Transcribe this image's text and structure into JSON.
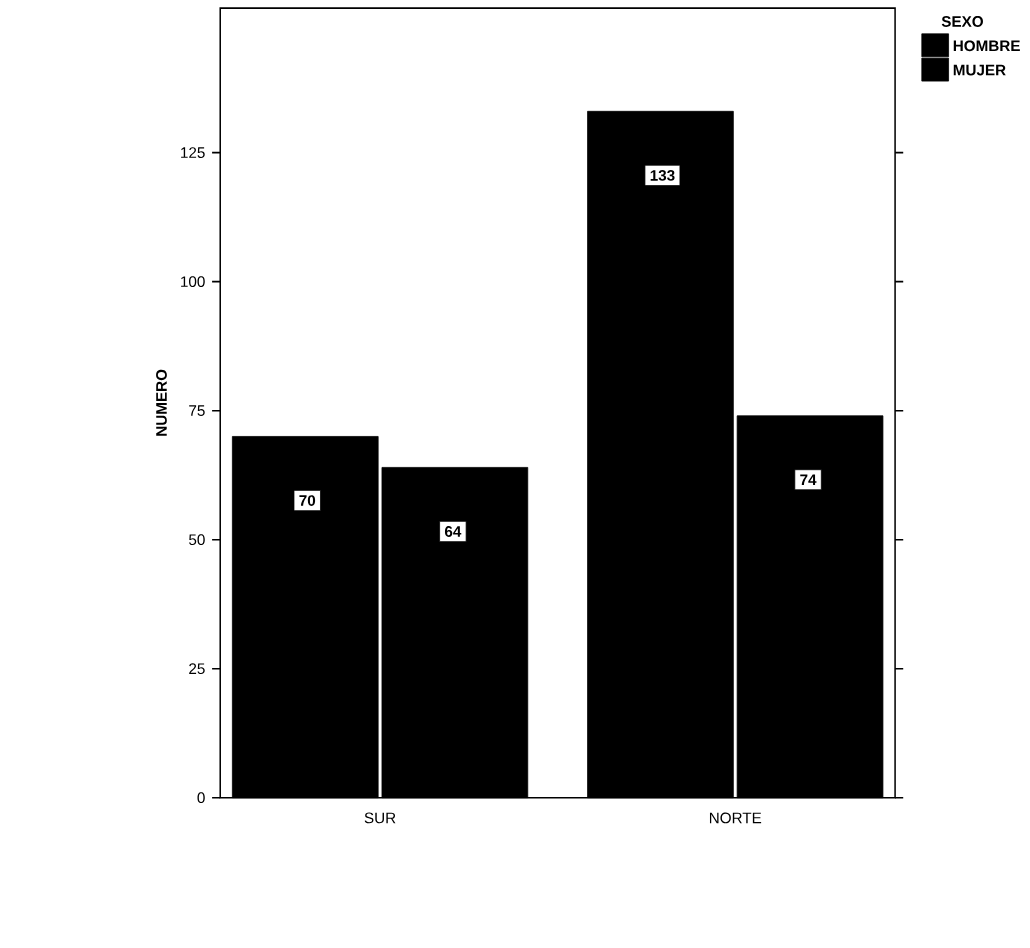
{
  "chart_data": {
    "type": "bar",
    "ylabel": "NUMERO",
    "legend_title": "SEXO",
    "categories": [
      "SUR",
      "NORTE"
    ],
    "series": [
      {
        "name": "HOMBRE",
        "color": "#000000",
        "values": [
          70,
          133
        ]
      },
      {
        "name": "MUJER",
        "color": "#000000",
        "values": [
          64,
          74
        ]
      }
    ],
    "ylim": [
      0,
      153
    ],
    "yticks": [
      0,
      25,
      50,
      75,
      100,
      125
    ],
    "data_labels": true,
    "legend": "top right",
    "grid": false
  }
}
